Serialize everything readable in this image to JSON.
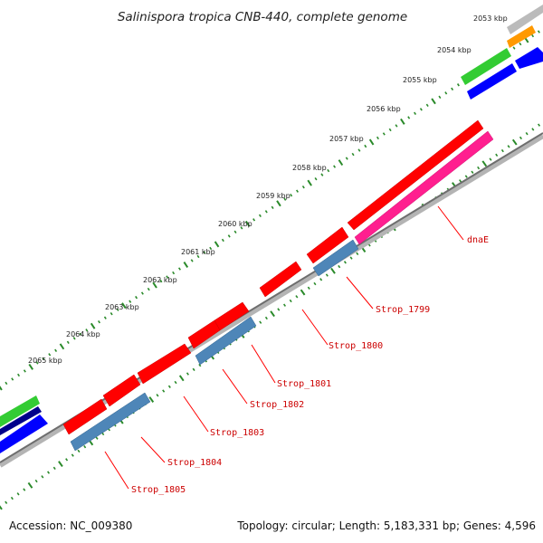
{
  "title": "Salinispora tropica CNB-440, complete genome",
  "accession_text": "Accession: NC_009380",
  "summary_text": "Topology: circular; Length: 5,183,331 bp; Genes: 4,596",
  "kbp_labels": [
    "2053 kbp",
    "2054 kbp",
    "2055 kbp",
    "2056 kbp",
    "2057 kbp",
    "2058 kbp",
    "2059 kbp",
    "2060 kbp",
    "2061 kbp",
    "2062 kbp",
    "2063 kbp",
    "2064 kbp",
    "2065 kbp"
  ],
  "genes": [
    {
      "label": "dnaE",
      "color": "#ff1f8f",
      "strand": "reverse"
    },
    {
      "label": "Strop_1799",
      "color": "#4e86b8",
      "strand": "reverse"
    },
    {
      "label": "Strop_1800",
      "color": "#ff0000",
      "strand": "forward"
    },
    {
      "label": "Strop_1801",
      "color": "#ff0000",
      "strand": "forward"
    },
    {
      "label": "Strop_1802",
      "color": "#4e86b8",
      "strand": "reverse"
    },
    {
      "label": "Strop_1803",
      "color": "#ff0000",
      "strand": "forward"
    },
    {
      "label": "Strop_1804",
      "color": "#ff0000",
      "strand": "forward"
    },
    {
      "label": "Strop_1805",
      "color": "#4e86b8",
      "strand": "reverse"
    }
  ],
  "colors": {
    "forward_cds": "#ff0000",
    "reverse_cds": "#4e86b8",
    "rna": "#ff1f8f",
    "backbone": "#8c8c8c",
    "ticks": "#2a8a2a",
    "outer_green": "#33cc33",
    "outer_blue": "#0000ff",
    "outer_orange": "#ff9900",
    "outer_gray": "#bbbbbb",
    "outer_navy": "#00008b"
  }
}
